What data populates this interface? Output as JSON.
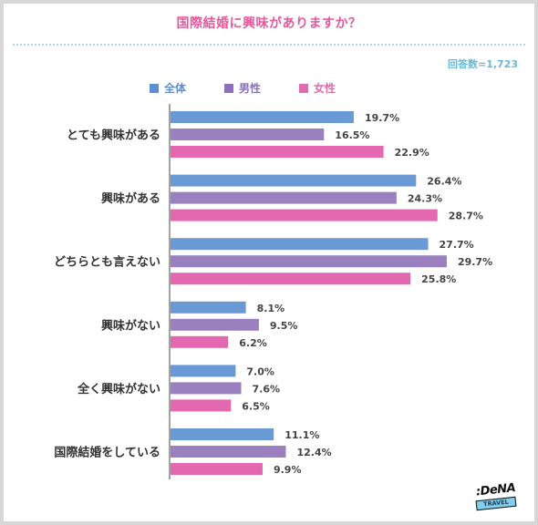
{
  "title": "国際結婚に興味がありますか？",
  "respondents": "回答数=1,723",
  "colors": {
    "all": "#6a9ad6",
    "male": "#9b80c0",
    "female": "#e468b0",
    "title": "#e8579c",
    "legend_all": "#5b8fd6",
    "legend_male": "#8d6fc0",
    "legend_female": "#e26bb0"
  },
  "logo": {
    "brand": ":DeNA",
    "sub": "TRAVEL"
  },
  "chart_data": {
    "type": "bar",
    "orientation": "horizontal",
    "title": "国際結婚に興味がありますか？",
    "categories": [
      "とても興味がある",
      "興味がある",
      "どちらとも言えない",
      "興味がない",
      "全く興味がない",
      "国際結婚をしている"
    ],
    "series": [
      {
        "name": "全体",
        "values": [
          19.7,
          26.4,
          27.7,
          8.1,
          7.0,
          11.1
        ],
        "labels": [
          "19.7%",
          "26.4%",
          "27.7%",
          "8.1%",
          "7.0%",
          "11.1%"
        ]
      },
      {
        "name": "男性",
        "values": [
          16.5,
          24.3,
          29.7,
          9.5,
          7.6,
          12.4
        ],
        "labels": [
          "16.5%",
          "24.3%",
          "29.7%",
          "9.5%",
          "7.6%",
          "12.4%"
        ]
      },
      {
        "name": "女性",
        "values": [
          22.9,
          28.7,
          25.8,
          6.2,
          6.5,
          9.9
        ],
        "labels": [
          "22.9%",
          "28.7%",
          "25.8%",
          "6.2%",
          "6.5%",
          "9.9%"
        ]
      }
    ],
    "xlim": [
      0,
      35
    ],
    "legend": "top",
    "grid": false
  }
}
